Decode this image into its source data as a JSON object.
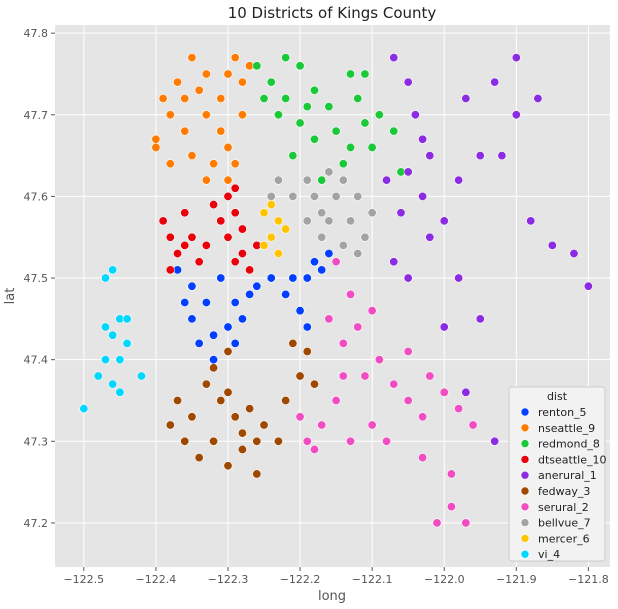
{
  "chart_data": {
    "type": "scatter",
    "title": "10 Districts of Kings County",
    "xlabel": "long",
    "ylabel": "lat",
    "xlim": [
      -122.54,
      -121.77
    ],
    "ylim": [
      47.146,
      47.81
    ],
    "xticks": [
      -122.5,
      -122.4,
      -122.3,
      -122.2,
      -122.1,
      -122.0,
      -121.9,
      -121.8
    ],
    "xtick_labels": [
      "−122.5",
      "−122.4",
      "−122.3",
      "−122.2",
      "−122.1",
      "−122.0",
      "−121.9",
      "−121.8"
    ],
    "yticks": [
      47.2,
      47.3,
      47.4,
      47.5,
      47.6,
      47.7,
      47.8
    ],
    "ytick_labels": [
      "47.2",
      "47.3",
      "47.4",
      "47.5",
      "47.6",
      "47.7",
      "47.8"
    ],
    "grid": true,
    "background": "#e5e5e5",
    "legend": {
      "title": "dist",
      "placement": "bottom-right"
    },
    "series": [
      {
        "name": "renton_5",
        "color": "#023eff",
        "points": [
          [
            -122.37,
            47.51
          ],
          [
            -122.35,
            47.49
          ],
          [
            -122.33,
            47.47
          ],
          [
            -122.35,
            47.45
          ],
          [
            -122.32,
            47.43
          ],
          [
            -122.3,
            47.44
          ],
          [
            -122.29,
            47.42
          ],
          [
            -122.28,
            47.45
          ],
          [
            -122.26,
            47.49
          ],
          [
            -122.24,
            47.5
          ],
          [
            -122.22,
            47.48
          ],
          [
            -122.2,
            47.46
          ],
          [
            -122.19,
            47.44
          ],
          [
            -122.21,
            47.42
          ],
          [
            -122.19,
            47.5
          ],
          [
            -122.18,
            47.52
          ],
          [
            -122.17,
            47.51
          ],
          [
            -122.16,
            47.53
          ],
          [
            -122.31,
            47.5
          ],
          [
            -122.29,
            47.47
          ],
          [
            -122.34,
            47.42
          ],
          [
            -122.32,
            47.4
          ],
          [
            -122.36,
            47.47
          ],
          [
            -122.27,
            47.48
          ],
          [
            -122.21,
            47.5
          ]
        ]
      },
      {
        "name": "nseattle_9",
        "color": "#ff7c00",
        "points": [
          [
            -122.4,
            47.67
          ],
          [
            -122.38,
            47.7
          ],
          [
            -122.37,
            47.74
          ],
          [
            -122.35,
            47.77
          ],
          [
            -122.33,
            47.75
          ],
          [
            -122.31,
            47.72
          ],
          [
            -122.29,
            47.77
          ],
          [
            -122.28,
            47.7
          ],
          [
            -122.3,
            47.66
          ],
          [
            -122.32,
            47.64
          ],
          [
            -122.35,
            47.65
          ],
          [
            -122.38,
            47.64
          ],
          [
            -122.4,
            47.66
          ],
          [
            -122.36,
            47.68
          ],
          [
            -122.33,
            47.7
          ],
          [
            -122.31,
            47.68
          ],
          [
            -122.28,
            47.74
          ],
          [
            -122.27,
            47.76
          ],
          [
            -122.3,
            47.75
          ],
          [
            -122.34,
            47.73
          ],
          [
            -122.36,
            47.72
          ],
          [
            -122.3,
            47.62
          ],
          [
            -122.33,
            47.62
          ],
          [
            -122.29,
            47.64
          ],
          [
            -122.39,
            47.72
          ]
        ]
      },
      {
        "name": "redmond_8",
        "color": "#1ac938",
        "points": [
          [
            -122.26,
            47.76
          ],
          [
            -122.24,
            47.74
          ],
          [
            -122.22,
            47.72
          ],
          [
            -122.2,
            47.76
          ],
          [
            -122.18,
            47.73
          ],
          [
            -122.16,
            47.71
          ],
          [
            -122.15,
            47.68
          ],
          [
            -122.13,
            47.66
          ],
          [
            -122.12,
            47.72
          ],
          [
            -122.11,
            47.75
          ],
          [
            -122.09,
            47.7
          ],
          [
            -122.1,
            47.66
          ],
          [
            -122.14,
            47.64
          ],
          [
            -122.18,
            47.67
          ],
          [
            -122.2,
            47.69
          ],
          [
            -122.23,
            47.7
          ],
          [
            -122.25,
            47.72
          ],
          [
            -122.21,
            47.65
          ],
          [
            -122.17,
            47.62
          ],
          [
            -122.13,
            47.75
          ],
          [
            -122.07,
            47.68
          ],
          [
            -122.06,
            47.63
          ],
          [
            -122.22,
            47.77
          ],
          [
            -122.19,
            47.71
          ],
          [
            -122.11,
            47.69
          ]
        ]
      },
      {
        "name": "dtseattle_10",
        "color": "#e8000b",
        "points": [
          [
            -122.39,
            47.57
          ],
          [
            -122.38,
            47.55
          ],
          [
            -122.37,
            47.53
          ],
          [
            -122.35,
            47.55
          ],
          [
            -122.36,
            47.58
          ],
          [
            -122.34,
            47.52
          ],
          [
            -122.33,
            47.54
          ],
          [
            -122.3,
            47.6
          ],
          [
            -122.29,
            47.58
          ],
          [
            -122.28,
            47.56
          ],
          [
            -122.3,
            47.55
          ],
          [
            -122.31,
            47.57
          ],
          [
            -122.28,
            47.53
          ],
          [
            -122.27,
            47.51
          ],
          [
            -122.29,
            47.52
          ],
          [
            -122.32,
            47.59
          ],
          [
            -122.36,
            47.54
          ],
          [
            -122.38,
            47.51
          ],
          [
            -122.26,
            47.54
          ],
          [
            -122.29,
            47.61
          ]
        ]
      },
      {
        "name": "anerural_1",
        "color": "#8b2be2",
        "points": [
          [
            -122.07,
            47.77
          ],
          [
            -122.05,
            47.74
          ],
          [
            -122.04,
            47.7
          ],
          [
            -122.03,
            47.67
          ],
          [
            -122.05,
            47.63
          ],
          [
            -122.03,
            47.6
          ],
          [
            -122.06,
            47.58
          ],
          [
            -122.02,
            47.55
          ],
          [
            -122.0,
            47.57
          ],
          [
            -121.98,
            47.62
          ],
          [
            -121.95,
            47.65
          ],
          [
            -121.97,
            47.72
          ],
          [
            -121.93,
            47.74
          ],
          [
            -121.9,
            47.77
          ],
          [
            -121.92,
            47.65
          ],
          [
            -121.9,
            47.7
          ],
          [
            -121.88,
            47.57
          ],
          [
            -121.85,
            47.54
          ],
          [
            -121.82,
            47.53
          ],
          [
            -121.8,
            47.49
          ],
          [
            -122.07,
            47.52
          ],
          [
            -122.05,
            47.5
          ],
          [
            -121.98,
            47.5
          ],
          [
            -121.95,
            47.45
          ],
          [
            -121.93,
            47.3
          ],
          [
            -121.97,
            47.36
          ],
          [
            -122.0,
            47.44
          ],
          [
            -122.08,
            47.62
          ],
          [
            -122.02,
            47.65
          ],
          [
            -121.87,
            47.72
          ]
        ]
      },
      {
        "name": "fedway_3",
        "color": "#9f4800",
        "points": [
          [
            -122.38,
            47.32
          ],
          [
            -122.36,
            47.3
          ],
          [
            -122.34,
            47.28
          ],
          [
            -122.32,
            47.3
          ],
          [
            -122.3,
            47.27
          ],
          [
            -122.28,
            47.29
          ],
          [
            -122.26,
            47.3
          ],
          [
            -122.29,
            47.33
          ],
          [
            -122.31,
            47.35
          ],
          [
            -122.33,
            47.37
          ],
          [
            -122.32,
            47.39
          ],
          [
            -122.3,
            47.36
          ],
          [
            -122.27,
            47.34
          ],
          [
            -122.25,
            47.32
          ],
          [
            -122.23,
            47.3
          ],
          [
            -122.22,
            47.35
          ],
          [
            -122.2,
            47.38
          ],
          [
            -122.19,
            47.41
          ],
          [
            -122.21,
            47.42
          ],
          [
            -122.18,
            47.37
          ],
          [
            -122.37,
            47.35
          ],
          [
            -122.35,
            47.33
          ],
          [
            -122.28,
            47.31
          ],
          [
            -122.3,
            47.41
          ],
          [
            -122.26,
            47.26
          ]
        ]
      },
      {
        "name": "serural_2",
        "color": "#f14cc1",
        "points": [
          [
            -122.15,
            47.52
          ],
          [
            -122.13,
            47.48
          ],
          [
            -122.16,
            47.45
          ],
          [
            -122.14,
            47.42
          ],
          [
            -122.12,
            47.44
          ],
          [
            -122.1,
            47.46
          ],
          [
            -122.09,
            47.4
          ],
          [
            -122.07,
            47.37
          ],
          [
            -122.05,
            47.35
          ],
          [
            -122.03,
            47.33
          ],
          [
            -122.0,
            47.36
          ],
          [
            -121.98,
            47.34
          ],
          [
            -121.96,
            47.32
          ],
          [
            -122.15,
            47.35
          ],
          [
            -122.17,
            47.32
          ],
          [
            -122.19,
            47.3
          ],
          [
            -122.13,
            47.3
          ],
          [
            -122.1,
            47.32
          ],
          [
            -122.08,
            47.3
          ],
          [
            -122.02,
            47.38
          ],
          [
            -121.99,
            47.22
          ],
          [
            -121.97,
            47.2
          ],
          [
            -122.01,
            47.2
          ],
          [
            -121.99,
            47.26
          ],
          [
            -122.03,
            47.28
          ],
          [
            -122.2,
            47.33
          ],
          [
            -122.18,
            47.29
          ],
          [
            -122.05,
            47.41
          ],
          [
            -122.11,
            47.38
          ],
          [
            -122.14,
            47.38
          ]
        ]
      },
      {
        "name": "bellvue_7",
        "color": "#a3a3a3",
        "points": [
          [
            -122.23,
            47.62
          ],
          [
            -122.21,
            47.6
          ],
          [
            -122.19,
            47.62
          ],
          [
            -122.17,
            47.58
          ],
          [
            -122.15,
            47.6
          ],
          [
            -122.13,
            47.57
          ],
          [
            -122.11,
            47.55
          ],
          [
            -122.14,
            47.54
          ],
          [
            -122.17,
            47.55
          ],
          [
            -122.19,
            47.57
          ],
          [
            -122.12,
            47.6
          ],
          [
            -122.1,
            47.58
          ],
          [
            -122.16,
            47.63
          ],
          [
            -122.14,
            47.62
          ],
          [
            -122.18,
            47.6
          ],
          [
            -122.24,
            47.6
          ],
          [
            -122.12,
            47.53
          ],
          [
            -122.16,
            47.57
          ]
        ]
      },
      {
        "name": "mercer_6",
        "color": "#ffc400",
        "points": [
          [
            -122.25,
            47.58
          ],
          [
            -122.23,
            47.57
          ],
          [
            -122.24,
            47.55
          ],
          [
            -122.23,
            47.53
          ],
          [
            -122.24,
            47.59
          ],
          [
            -122.22,
            47.56
          ],
          [
            -122.25,
            47.54
          ]
        ]
      },
      {
        "name": "vi_4",
        "color": "#00d7ff",
        "points": [
          [
            -122.47,
            47.5
          ],
          [
            -122.46,
            47.51
          ],
          [
            -122.45,
            47.45
          ],
          [
            -122.46,
            47.43
          ],
          [
            -122.45,
            47.4
          ],
          [
            -122.44,
            47.42
          ],
          [
            -122.47,
            47.44
          ],
          [
            -122.47,
            47.4
          ],
          [
            -122.46,
            47.37
          ],
          [
            -122.45,
            47.36
          ],
          [
            -122.42,
            47.38
          ],
          [
            -122.44,
            47.45
          ],
          [
            -122.48,
            47.38
          ],
          [
            -122.5,
            47.34
          ]
        ]
      }
    ]
  }
}
